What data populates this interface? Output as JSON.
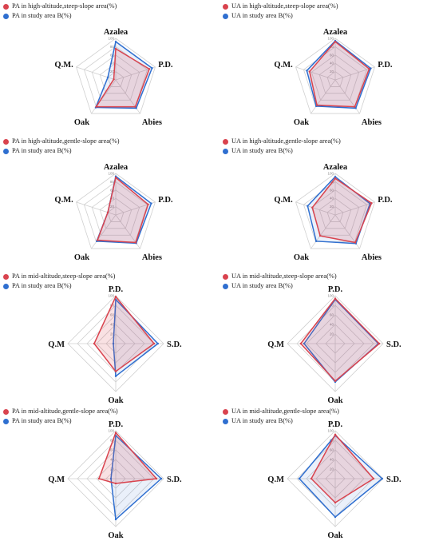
{
  "colors": {
    "pa_ua": "#d9434e",
    "study": "#2f6fd0",
    "grid": "#d0d0d0"
  },
  "chart_data": [
    {
      "type": "radar",
      "legend": [
        "PA in high-altitude,steep-slope area(%)",
        "PA in study area B(%)"
      ],
      "axes": [
        "Azalea",
        "P.D.",
        "Abies",
        "Oak",
        "Q.M."
      ],
      "ticks": [
        "100",
        "80",
        "60",
        "40",
        "20"
      ],
      "series": [
        {
          "name": "PA in high-altitude,steep-slope area(%)",
          "values": [
            75,
            85,
            80,
            80,
            5
          ]
        },
        {
          "name": "PA in study area B(%)",
          "values": [
            92,
            92,
            84,
            82,
            20
          ]
        }
      ]
    },
    {
      "type": "radar",
      "legend": [
        "UA in high-altitude,steep-slope area(%)",
        "UA in study area B(%)"
      ],
      "axes": [
        "Azalea",
        "P.D.",
        "Abies",
        "Oak",
        "Q.M."
      ],
      "ticks": [
        "100",
        "80",
        "60",
        "40",
        "20"
      ],
      "series": [
        {
          "name": "UA in high-altitude,steep-slope area(%)",
          "values": [
            92,
            86,
            80,
            75,
            65
          ]
        },
        {
          "name": "UA in study area B(%)",
          "values": [
            94,
            90,
            84,
            78,
            72
          ]
        }
      ]
    },
    {
      "type": "radar",
      "legend": [
        "PA in high-altitude,gentle-slope area(%)",
        "PA in study area B(%)"
      ],
      "axes": [
        "Azalea",
        "P.D.",
        "Abies",
        "Oak",
        "Q.M."
      ],
      "ticks": [
        "100",
        "80",
        "60",
        "40",
        "20"
      ],
      "series": [
        {
          "name": "PA in high-altitude,gentle-slope area(%)",
          "values": [
            90,
            82,
            82,
            75,
            20
          ]
        },
        {
          "name": "PA in study area B(%)",
          "values": [
            93,
            90,
            84,
            78,
            20
          ]
        }
      ]
    },
    {
      "type": "radar",
      "legend": [
        "UA in high-altitude,gentle-slope area(%)",
        "UA in study area B(%)"
      ],
      "axes": [
        "Azalea",
        "P.D.",
        "Abies",
        "Oak",
        "Q.M."
      ],
      "ticks": [
        "100",
        "80",
        "60",
        "40",
        "20"
      ],
      "series": [
        {
          "name": "UA in high-altitude,gentle-slope area(%)",
          "values": [
            88,
            92,
            82,
            62,
            58
          ]
        },
        {
          "name": "UA in study area B(%)",
          "values": [
            92,
            88,
            85,
            78,
            70
          ]
        }
      ]
    },
    {
      "type": "radar",
      "legend": [
        "PA in mid-altitude,steep-slope area(%)",
        "PA in study area B(%)"
      ],
      "axes": [
        "P.D.",
        "S.D.",
        "Oak",
        "Q.M"
      ],
      "ticks": [
        "100",
        "80",
        "60",
        "40",
        "20"
      ],
      "series": [
        {
          "name": "PA in mid-altitude,steep-slope area(%)",
          "values": [
            98,
            80,
            58,
            45
          ]
        },
        {
          "name": "PA in study area B(%)",
          "values": [
            92,
            88,
            68,
            5
          ]
        }
      ]
    },
    {
      "type": "radar",
      "legend": [
        "UA in mid-altitude,steep-slope area(%)",
        "UA in study area B(%)"
      ],
      "axes": [
        "P.D.",
        "S.D.",
        "Oak",
        "Q.M"
      ],
      "ticks": [
        "100",
        "80",
        "60",
        "40",
        "20"
      ],
      "series": [
        {
          "name": "UA in mid-altitude,steep-slope area(%)",
          "values": [
            94,
            92,
            78,
            72
          ]
        },
        {
          "name": "UA in study area B(%)",
          "values": [
            92,
            90,
            80,
            65
          ]
        }
      ]
    },
    {
      "type": "radar",
      "legend": [
        "PA in mid-altitude,gentle-slope area(%)",
        "PA in study area B(%)"
      ],
      "axes": [
        "P.D.",
        "S.D.",
        "Oak",
        "Q.M"
      ],
      "ticks": [
        "100",
        "80",
        "60",
        "40",
        "20"
      ],
      "series": [
        {
          "name": "PA in mid-altitude,gentle-slope area(%)",
          "values": [
            96,
            85,
            10,
            35
          ]
        },
        {
          "name": "PA in study area B(%)",
          "values": [
            90,
            95,
            85,
            10
          ]
        }
      ]
    },
    {
      "type": "radar",
      "legend": [
        "UA in mid-altitude,gentle-slope area(%)",
        "UA in study area B(%)"
      ],
      "axes": [
        "P.D.",
        "S.D.",
        "Oak",
        "Q.M"
      ],
      "ticks": [
        "100",
        "80",
        "60",
        "40",
        "20"
      ],
      "series": [
        {
          "name": "UA in mid-altitude,gentle-slope area(%)",
          "values": [
            92,
            80,
            50,
            50
          ]
        },
        {
          "name": "UA in study area B(%)",
          "values": [
            90,
            98,
            80,
            75
          ]
        }
      ]
    }
  ]
}
